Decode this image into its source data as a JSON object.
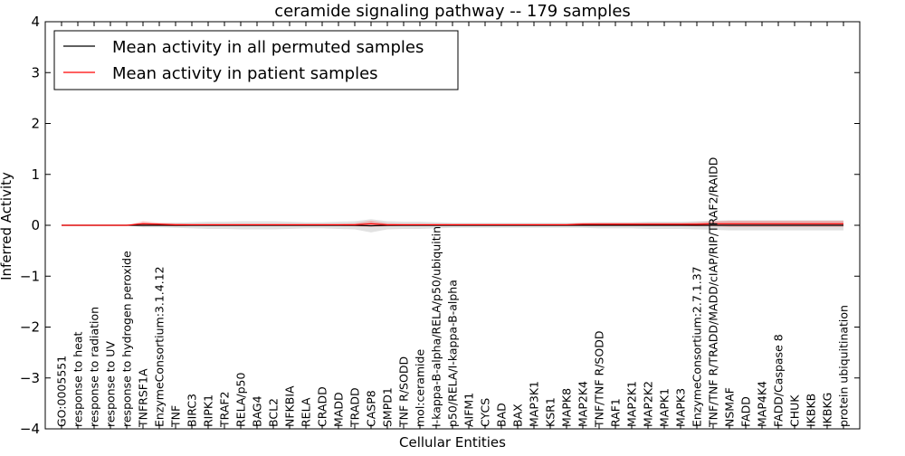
{
  "chart_data": {
    "type": "line",
    "title": "ceramide signaling pathway -- 179 samples",
    "xlabel": "Cellular Entities",
    "ylabel": "Inferred Activity",
    "ylim": [
      -4,
      4
    ],
    "yticks": [
      4,
      3,
      2,
      1,
      0,
      -1,
      -2,
      -3,
      -4
    ],
    "ytick_labels": [
      "4",
      "3",
      "2",
      "1",
      "0",
      "−1",
      "−2",
      "−3",
      "−4"
    ],
    "legend_position": "top-left",
    "categories": [
      "GO:0005551",
      "response to heat",
      "response to radiation",
      "response to UV",
      "response to hydrogen peroxide",
      "TNFRSF1A",
      "EnzymeConsortium:3.1.4.12",
      "TNF",
      "BIRC3",
      "RIPK1",
      "TRAF2",
      "RELA/p50",
      "BAG4",
      "BCL2",
      "NFKBIA",
      "RELA",
      "CRADD",
      "MADD",
      "TRADD",
      "CASP8",
      "SMPD1",
      "TNF R/SODD",
      "mol:ceramide",
      "I-kappa-B-alpha/RELA/p50/ubiquitin",
      "p50/RELA/I-kappa-B-alpha",
      "AIFM1",
      "CYCS",
      "BAD",
      "BAX",
      "MAP3K1",
      "KSR1",
      "MAPK8",
      "MAP2K4",
      "TNF/TNF R/SODD",
      "RAF1",
      "MAP2K1",
      "MAP2K2",
      "MAPK1",
      "MAPK3",
      "EnzymeConsortium:2.7.1.37",
      "TNF/TNF R/TRADD/MADD/cIAP/RIP/TRAF2/RAIDD",
      "NSMAF",
      "FADD",
      "MAP4K4",
      "FADD/Caspase 8",
      "CHUK",
      "IKBKB",
      "IKBKG",
      "protein ubiquitination"
    ],
    "series": [
      {
        "name": "Mean activity in all permuted samples",
        "color": "#000000",
        "values": [
          0,
          0,
          0,
          0,
          0,
          0,
          0,
          0,
          0,
          0,
          0,
          0,
          0,
          0,
          0,
          0,
          0,
          0,
          0,
          -0.01,
          0,
          0,
          0,
          0,
          0,
          0,
          0,
          0,
          0,
          0,
          0,
          0,
          0,
          0,
          0,
          0,
          0,
          0,
          0,
          0,
          0,
          0,
          0,
          0,
          0,
          0,
          0,
          0,
          0
        ],
        "band": [
          0,
          0,
          0,
          0,
          0,
          0.04,
          0.04,
          0.05,
          0.06,
          0.07,
          0.07,
          0.08,
          0.08,
          0.08,
          0.07,
          0.06,
          0.06,
          0.07,
          0.08,
          0.13,
          0.08,
          0.07,
          0.07,
          0.06,
          0.05,
          0.05,
          0.05,
          0.05,
          0.05,
          0.05,
          0.05,
          0.05,
          0.05,
          0.06,
          0.06,
          0.06,
          0.07,
          0.07,
          0.07,
          0.08,
          0.09,
          0.1,
          0.1,
          0.1,
          0.1,
          0.1,
          0.1,
          0.1,
          0.1
        ]
      },
      {
        "name": "Mean activity in patient samples",
        "color": "#ff0000",
        "values": [
          0,
          0,
          0,
          0,
          0,
          0.03,
          0.02,
          0.01,
          0.01,
          0.01,
          0.01,
          0.01,
          0.01,
          0.01,
          0.01,
          0.01,
          0.01,
          0.01,
          0.01,
          0.03,
          0.01,
          0.01,
          0.01,
          0.01,
          0.01,
          0.01,
          0.01,
          0.01,
          0.01,
          0.01,
          0.01,
          0.01,
          0.02,
          0.02,
          0.02,
          0.02,
          0.02,
          0.02,
          0.02,
          0.02,
          0.03,
          0.03,
          0.03,
          0.03,
          0.03,
          0.03,
          0.03,
          0.03,
          0.03
        ],
        "band": [
          0,
          0,
          0,
          0,
          0,
          0.05,
          0.03,
          0.03,
          0.02,
          0.02,
          0.02,
          0.02,
          0.02,
          0.02,
          0.02,
          0.02,
          0.02,
          0.02,
          0.03,
          0.06,
          0.03,
          0.02,
          0.02,
          0.02,
          0.02,
          0.02,
          0.02,
          0.02,
          0.02,
          0.02,
          0.02,
          0.02,
          0.03,
          0.03,
          0.03,
          0.03,
          0.03,
          0.03,
          0.03,
          0.04,
          0.05,
          0.06,
          0.06,
          0.06,
          0.06,
          0.06,
          0.06,
          0.06,
          0.06
        ]
      }
    ]
  }
}
